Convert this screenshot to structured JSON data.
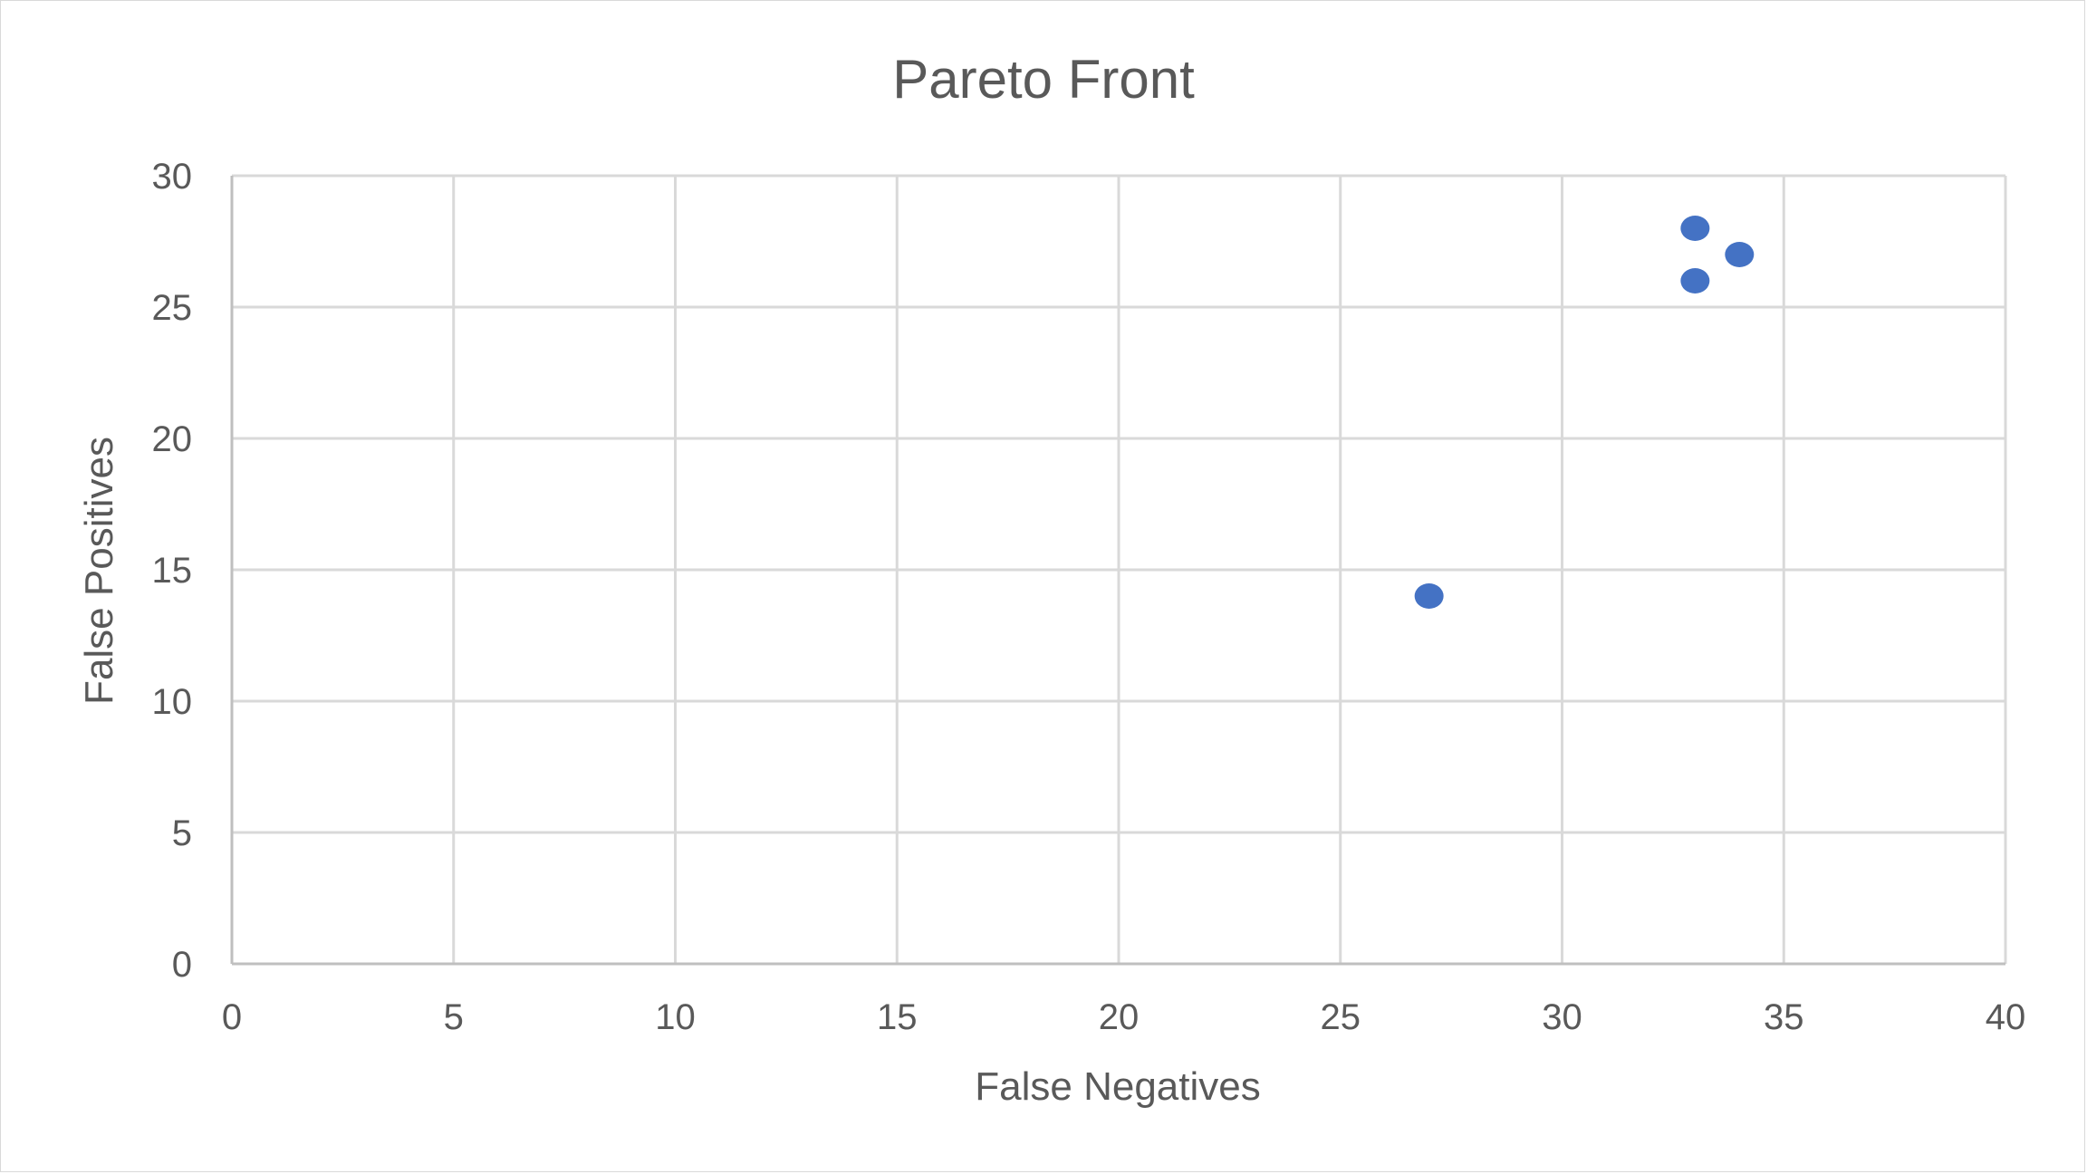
{
  "chart_data": {
    "type": "scatter",
    "title": "Pareto Front",
    "xlabel": "False Negatives",
    "ylabel": "False Positives",
    "xlim": [
      0,
      40
    ],
    "ylim": [
      0,
      30
    ],
    "x_ticks": [
      "0",
      "5",
      "10",
      "15",
      "20",
      "25",
      "30",
      "35",
      "40"
    ],
    "y_ticks": [
      "0",
      "5",
      "10",
      "15",
      "20",
      "25",
      "30"
    ],
    "grid": true,
    "legend": "none",
    "series": [
      {
        "color": "#4472c4",
        "points": [
          {
            "x": 27,
            "y": 14
          },
          {
            "x": 33,
            "y": 28
          },
          {
            "x": 33,
            "y": 26
          },
          {
            "x": 34,
            "y": 27
          }
        ]
      }
    ]
  }
}
